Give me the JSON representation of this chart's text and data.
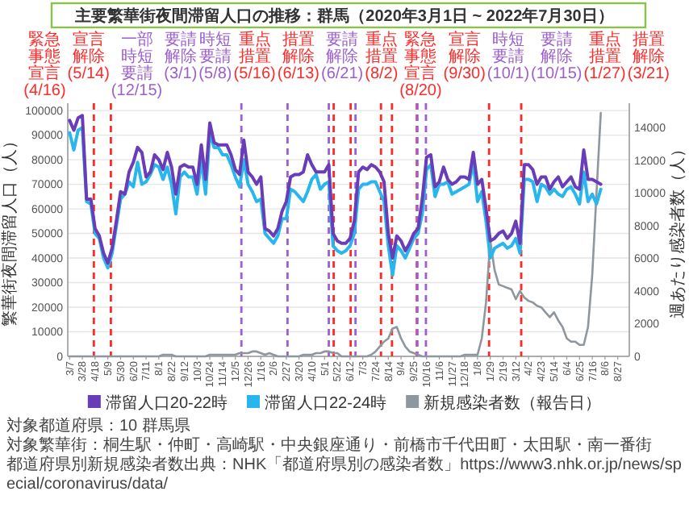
{
  "chart_data": {
    "type": "line",
    "title": "主要繁華街夜間滞留人口の推移：群馬（2020年3月1日 ~ 2022年7月30日）",
    "ylabel": "繁華街夜間滞留人口（人）",
    "y2label": "週あたり感染者数（人）",
    "x": [
      "2020-03-07",
      "2020-03-14",
      "2020-03-21",
      "2020-03-28",
      "2020-04-04",
      "2020-04-11",
      "2020-04-18",
      "2020-04-25",
      "2020-05-02",
      "2020-05-09",
      "2020-05-16",
      "2020-05-23",
      "2020-05-30",
      "2020-06-06",
      "2020-06-13",
      "2020-06-20",
      "2020-06-27",
      "2020-07-04",
      "2020-07-11",
      "2020-07-18",
      "2020-07-25",
      "2020-08-01",
      "2020-08-08",
      "2020-08-15",
      "2020-08-22",
      "2020-08-29",
      "2020-09-05",
      "2020-09-12",
      "2020-09-19",
      "2020-09-26",
      "2020-10-03",
      "2020-10-10",
      "2020-10-17",
      "2020-10-24",
      "2020-10-31",
      "2020-11-07",
      "2020-11-14",
      "2020-11-21",
      "2020-11-28",
      "2020-12-05",
      "2020-12-12",
      "2020-12-19",
      "2020-12-26",
      "2021-01-02",
      "2021-01-09",
      "2021-01-16",
      "2021-01-23",
      "2021-01-30",
      "2021-02-06",
      "2021-02-13",
      "2021-02-20",
      "2021-02-27",
      "2021-03-06",
      "2021-03-13",
      "2021-03-20",
      "2021-03-27",
      "2021-04-03",
      "2021-04-10",
      "2021-04-17",
      "2021-04-24",
      "2021-05-01",
      "2021-05-08",
      "2021-05-15",
      "2021-05-22",
      "2021-05-29",
      "2021-06-05",
      "2021-06-12",
      "2021-06-19",
      "2021-06-26",
      "2021-07-03",
      "2021-07-10",
      "2021-07-17",
      "2021-07-24",
      "2021-07-31",
      "2021-08-07",
      "2021-08-14",
      "2021-08-21",
      "2021-08-28",
      "2021-09-04",
      "2021-09-11",
      "2021-09-18",
      "2021-09-25",
      "2021-10-02",
      "2021-10-09",
      "2021-10-16",
      "2021-10-23",
      "2021-10-30",
      "2021-11-06",
      "2021-11-13",
      "2021-11-20",
      "2021-11-27",
      "2021-12-04",
      "2021-12-11",
      "2021-12-18",
      "2021-12-25",
      "2022-01-01",
      "2022-01-08",
      "2022-01-15",
      "2022-01-22",
      "2022-01-29",
      "2022-02-05",
      "2022-02-12",
      "2022-02-19",
      "2022-02-26",
      "2022-03-05",
      "2022-03-12",
      "2022-03-19",
      "2022-03-26",
      "2022-04-02",
      "2022-04-09",
      "2022-04-16",
      "2022-04-23",
      "2022-04-30",
      "2022-05-07",
      "2022-05-14",
      "2022-05-21",
      "2022-05-28",
      "2022-06-04",
      "2022-06-11",
      "2022-06-18",
      "2022-06-25",
      "2022-07-02",
      "2022-07-09",
      "2022-07-16",
      "2022-07-23",
      "2022-07-30"
    ],
    "series": [
      {
        "name": "新規感染者数（報告日）",
        "color": "#8e979e",
        "axis": "y2",
        "values": [
          0,
          0,
          0,
          0,
          0,
          0,
          0,
          0,
          0,
          0,
          0,
          0,
          0,
          0,
          0,
          0,
          0,
          0,
          0,
          0,
          0,
          0,
          100,
          100,
          100,
          0,
          0,
          0,
          0,
          0,
          0,
          0,
          0,
          100,
          100,
          100,
          100,
          100,
          100,
          100,
          200,
          200,
          200,
          300,
          300,
          200,
          100,
          200,
          100,
          0,
          0,
          0,
          0,
          0,
          0,
          100,
          100,
          100,
          200,
          200,
          300,
          300,
          200,
          200,
          0,
          0,
          0,
          0,
          0,
          0,
          0,
          100,
          300,
          600,
          900,
          1100,
          1700,
          1800,
          1100,
          600,
          300,
          200,
          100,
          0,
          0,
          0,
          0,
          0,
          0,
          0,
          0,
          0,
          0,
          100,
          100,
          100,
          100,
          1100,
          3300,
          7100,
          5300,
          4400,
          4300,
          4200,
          4100,
          3500,
          4000,
          3600,
          3400,
          3300,
          3100,
          3000,
          2700,
          2400,
          2700,
          2200,
          1800,
          1100,
          900,
          900,
          700,
          700,
          1800,
          5000,
          10000,
          14900
        ]
      },
      {
        "name": "滞留人口22-24時",
        "color": "#29b6ec",
        "values": [
          91000,
          84000,
          92000,
          93000,
          63000,
          62000,
          50000,
          48000,
          40000,
          36000,
          42000,
          53000,
          64000,
          66000,
          71000,
          69000,
          79000,
          70000,
          71000,
          74000,
          78000,
          77000,
          72000,
          77000,
          70000,
          58000,
          73000,
          75000,
          73000,
          73000,
          66000,
          80000,
          66000,
          91000,
          85000,
          85000,
          82000,
          82000,
          78000,
          73000,
          69000,
          80000,
          70000,
          67000,
          63000,
          64000,
          50000,
          48000,
          46000,
          49000,
          56000,
          56000,
          68000,
          67000,
          65000,
          63000,
          67000,
          72000,
          74000,
          68000,
          70000,
          71000,
          45000,
          43000,
          42000,
          43000,
          45000,
          50000,
          68000,
          70000,
          70000,
          71000,
          71000,
          67000,
          63000,
          45000,
          33000,
          45000,
          43000,
          40000,
          44000,
          48000,
          50000,
          58000,
          76000,
          78000,
          65000,
          70000,
          70000,
          71000,
          66000,
          67000,
          68000,
          69000,
          70000,
          79000,
          63000,
          67000,
          55000,
          40000,
          44000,
          45000,
          46000,
          44000,
          45000,
          48000,
          42000,
          72000,
          72000,
          71000,
          63000,
          70000,
          69000,
          66000,
          68000,
          66000,
          65000,
          68000,
          69000,
          66000,
          62000,
          75000,
          63000,
          66000,
          62000,
          68000
        ]
      },
      {
        "name": "滞留人口20-22時",
        "color": "#6a3db8",
        "values": [
          96000,
          92000,
          97000,
          98000,
          64000,
          64000,
          52000,
          49000,
          42000,
          38000,
          44000,
          55000,
          67000,
          66000,
          75000,
          79000,
          85000,
          83000,
          73000,
          75000,
          82000,
          80000,
          76000,
          83000,
          77000,
          66000,
          77000,
          78000,
          77000,
          77000,
          70000,
          86000,
          72000,
          95000,
          87000,
          86000,
          86000,
          86000,
          82000,
          76000,
          74000,
          88000,
          75000,
          73000,
          70000,
          73000,
          52000,
          51000,
          49000,
          52000,
          59000,
          63000,
          73000,
          74000,
          74000,
          75000,
          82000,
          78000,
          75000,
          75000,
          75000,
          78000,
          50000,
          47000,
          46000,
          46000,
          48000,
          55000,
          75000,
          77000,
          76000,
          78000,
          77000,
          75000,
          71000,
          50000,
          40000,
          49000,
          47000,
          43000,
          46000,
          50000,
          52000,
          64000,
          81000,
          82000,
          69000,
          71000,
          77000,
          72000,
          70000,
          71000,
          73000,
          73000,
          72000,
          83000,
          70000,
          72000,
          60000,
          47000,
          48000,
          50000,
          51000,
          48000,
          50000,
          55000,
          46000,
          78000,
          78000,
          76000,
          70000,
          73000,
          73000,
          68000,
          71000,
          73000,
          69000,
          71000,
          73000,
          69000,
          68000,
          84000,
          72000,
          72000,
          71000,
          70000
        ]
      }
    ],
    "xlim": [
      "2020-03-04",
      "2022-09-15"
    ],
    "xticks": [
      {
        "value": "2020-03-07",
        "label": "3/7"
      },
      {
        "value": "2020-03-28",
        "label": "3/28"
      },
      {
        "value": "2020-04-18",
        "label": "4/18"
      },
      {
        "value": "2020-05-09",
        "label": "5/9"
      },
      {
        "value": "2020-05-30",
        "label": "5/30"
      },
      {
        "value": "2020-06-20",
        "label": "6/20"
      },
      {
        "value": "2020-07-11",
        "label": "7/11"
      },
      {
        "value": "2020-08-01",
        "label": "8/1"
      },
      {
        "value": "2020-08-22",
        "label": "8/22"
      },
      {
        "value": "2020-09-12",
        "label": "9/12"
      },
      {
        "value": "2020-10-03",
        "label": "10/3"
      },
      {
        "value": "2020-10-24",
        "label": "10/24"
      },
      {
        "value": "2020-11-14",
        "label": "11/14"
      },
      {
        "value": "2020-12-05",
        "label": "12/5"
      },
      {
        "value": "2020-12-26",
        "label": "12/26"
      },
      {
        "value": "2021-01-16",
        "label": "1/16"
      },
      {
        "value": "2021-02-06",
        "label": "2/6"
      },
      {
        "value": "2021-02-27",
        "label": "2/27"
      },
      {
        "value": "2021-03-20",
        "label": "3/20"
      },
      {
        "value": "2021-04-10",
        "label": "4/10"
      },
      {
        "value": "2021-05-01",
        "label": "5/1"
      },
      {
        "value": "2021-05-22",
        "label": "5/22"
      },
      {
        "value": "2021-06-12",
        "label": "6/12"
      },
      {
        "value": "2021-07-03",
        "label": "7/3"
      },
      {
        "value": "2021-07-24",
        "label": "7/24"
      },
      {
        "value": "2021-08-14",
        "label": "8/14"
      },
      {
        "value": "2021-09-04",
        "label": "9/4"
      },
      {
        "value": "2021-09-25",
        "label": "9/25"
      },
      {
        "value": "2021-10-16",
        "label": "10/16"
      },
      {
        "value": "2021-11-06",
        "label": "11/6"
      },
      {
        "value": "2021-11-27",
        "label": "11/27"
      },
      {
        "value": "2021-12-18",
        "label": "12/18"
      },
      {
        "value": "2022-01-08",
        "label": "1/8"
      },
      {
        "value": "2022-01-29",
        "label": "1/29"
      },
      {
        "value": "2022-02-19",
        "label": "2/19"
      },
      {
        "value": "2022-03-12",
        "label": "3/12"
      },
      {
        "value": "2022-04-02",
        "label": "4/2"
      },
      {
        "value": "2022-04-23",
        "label": "4/23"
      },
      {
        "value": "2022-05-14",
        "label": "5/14"
      },
      {
        "value": "2022-06-04",
        "label": "6/4"
      },
      {
        "value": "2022-06-25",
        "label": "6/25"
      },
      {
        "value": "2022-07-16",
        "label": "7/16"
      },
      {
        "value": "2022-08-06",
        "label": "8/6"
      },
      {
        "value": "2022-08-27",
        "label": "8/27"
      }
    ],
    "ylim": [
      0,
      103000
    ],
    "yticks": [
      0,
      10000,
      20000,
      30000,
      40000,
      50000,
      60000,
      70000,
      80000,
      90000,
      100000
    ],
    "y2lim": [
      0,
      15500
    ],
    "y2ticks": [
      0,
      2000,
      4000,
      6000,
      8000,
      10000,
      12000,
      14000
    ],
    "grid": "y",
    "legend": "bottom",
    "ref_lines": [
      {
        "axis": "x",
        "value": "2020-04-16",
        "label": "緊急事態宣言(4/16)",
        "color": "#ff2a2a",
        "line_style": "dashed"
      },
      {
        "axis": "x",
        "value": "2020-05-14",
        "label": "宣言解除(5/14)",
        "color": "#ff2a2a",
        "line_style": "dashed"
      },
      {
        "axis": "x",
        "value": "2020-12-15",
        "label": "一部時短要請(12/15)",
        "color": "#9c5fd0",
        "line_style": "dashed"
      },
      {
        "axis": "x",
        "value": "2021-03-01",
        "label": "要請解除(3/1)",
        "color": "#9c5fd0",
        "line_style": "dashed"
      },
      {
        "axis": "x",
        "value": "2021-05-08",
        "label": "時短要請(5/8)",
        "color": "#9c5fd0",
        "line_style": "dashed"
      },
      {
        "axis": "x",
        "value": "2021-05-16",
        "label": "重点措置(5/16)",
        "color": "#ff2a2a",
        "line_style": "dashed"
      },
      {
        "axis": "x",
        "value": "2021-06-13",
        "label": "措置解除(6/13)",
        "color": "#ff2a2a",
        "line_style": "dashed"
      },
      {
        "axis": "x",
        "value": "2021-06-21",
        "label": "要請解除(6/21)",
        "color": "#9c5fd0",
        "line_style": "dashed"
      },
      {
        "axis": "x",
        "value": "2021-08-02",
        "label": "重点措置(8/2)",
        "color": "#ff2a2a",
        "line_style": "dashed"
      },
      {
        "axis": "x",
        "value": "2021-08-20",
        "label": "緊急事態宣言(8/20)",
        "color": "#ff2a2a",
        "line_style": "dashed"
      },
      {
        "axis": "x",
        "value": "2021-09-30",
        "label": "宣言解除(9/30)",
        "color": "#ff2a2a",
        "line_style": "dashed"
      },
      {
        "axis": "x",
        "value": "2021-10-01",
        "label": "時短要請(10/1)",
        "color": "#9c5fd0",
        "line_style": "dashed"
      },
      {
        "axis": "x",
        "value": "2021-10-15",
        "label": "要請解除(10/15)",
        "color": "#9c5fd0",
        "line_style": "dashed"
      },
      {
        "axis": "x",
        "value": "2022-01-27",
        "label": "重点措置(1/27)",
        "color": "#ff2a2a",
        "line_style": "dashed"
      },
      {
        "axis": "x",
        "value": "2022-03-21",
        "label": "措置解除(3/21)",
        "color": "#ff2a2a",
        "line_style": "dashed"
      }
    ],
    "annotations": [
      "対象都道府県：10 群馬県",
      "対象繁華街：桐生駅・仲町・高崎駅・中央銀座通り・前橋市千代田町・太田駅・南一番街",
      "都道府県別新規感染者数出典：NHK「都道府県別の感染者数」https://www3.nhk.or.jp/news/special/coronavirus/data/"
    ]
  }
}
